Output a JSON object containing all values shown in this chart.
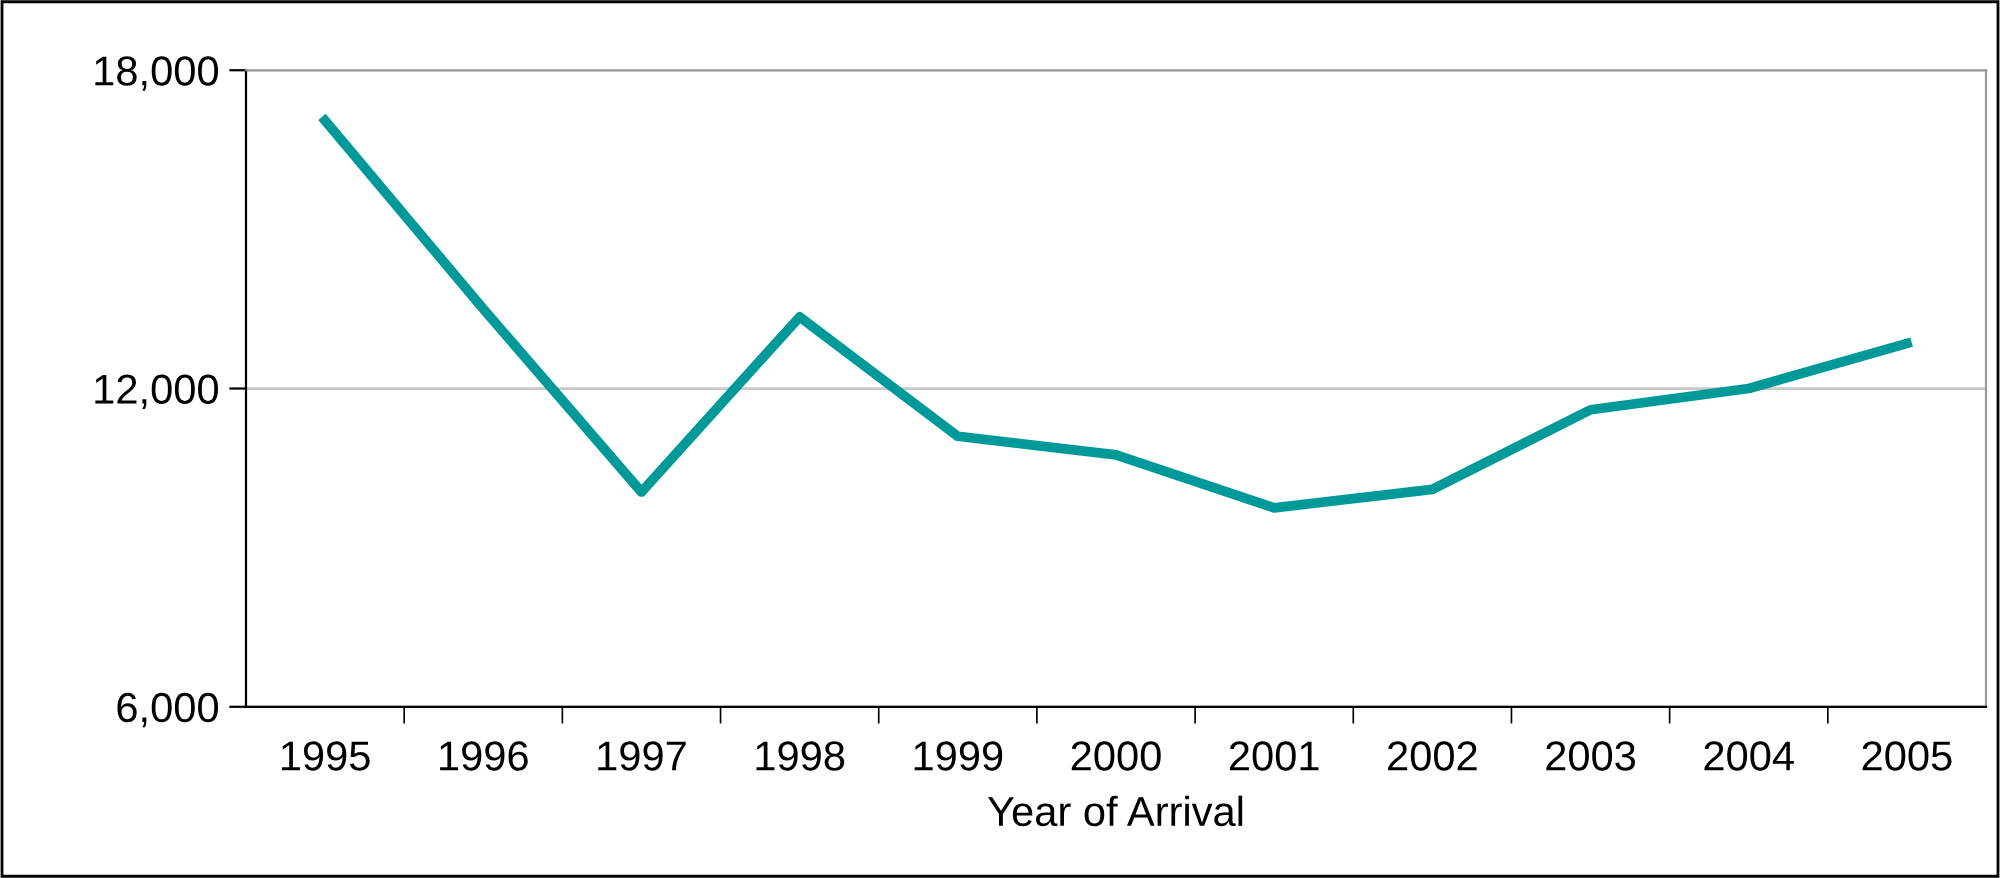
{
  "chart_data": {
    "type": "line",
    "xlabel": "Year of Arrival",
    "categories": [
      "1995",
      "1996",
      "1997",
      "1998",
      "1999",
      "2000",
      "2001",
      "2002",
      "2003",
      "2004",
      "2005"
    ],
    "series": [
      {
        "color": "#009999",
        "values": [
          17050,
          13500,
          10050,
          13350,
          11100,
          10750,
          9750,
          10100,
          11600,
          12000,
          12850
        ]
      }
    ],
    "ylim": [
      6000,
      18000
    ],
    "yticks": [
      {
        "value": 6000,
        "label": "6,000"
      },
      {
        "value": 12000,
        "label": "12,000"
      },
      {
        "value": 18000,
        "label": "18,000"
      }
    ],
    "grid": "y",
    "marker": "none",
    "line_style": "solid"
  }
}
